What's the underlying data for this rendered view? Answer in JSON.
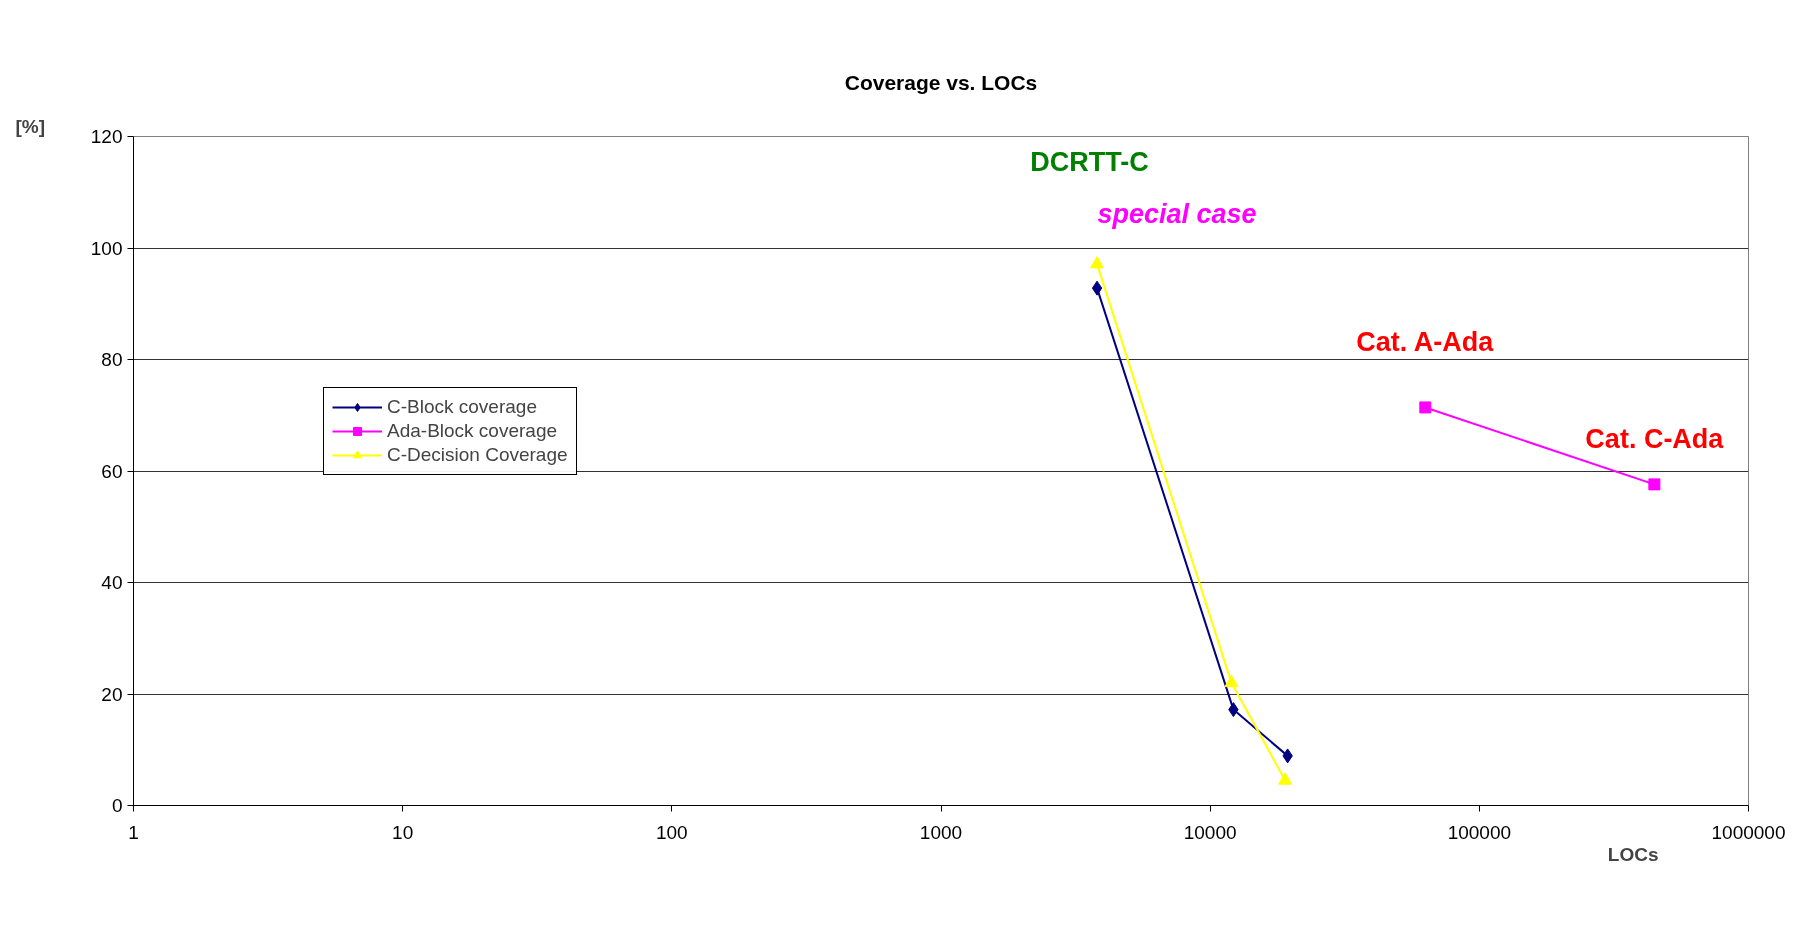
{
  "chart_data": {
    "type": "line",
    "title": "Coverage vs. LOCs",
    "xlabel": "LOCs",
    "ylabel": "[%]",
    "log": "x",
    "xlim": [
      1,
      1000000
    ],
    "xticks": [
      1,
      10,
      100,
      1000,
      10000,
      100000,
      1000000
    ],
    "ylim": [
      0,
      120
    ],
    "yticks": [
      0,
      20,
      40,
      60,
      80,
      100,
      120
    ],
    "grid": "y",
    "legend": "left",
    "series": [
      {
        "name": "C-Block coverage",
        "color": "#000080",
        "marker": "diamond",
        "x": [
          3800,
          12200,
          19400
        ],
        "values": [
          92.8,
          17.2,
          8.9
        ]
      },
      {
        "name": "Ada-Block coverage",
        "color": "#ff00ff",
        "marker": "square",
        "x": [
          63000,
          447000
        ],
        "values": [
          71.4,
          57.6
        ]
      },
      {
        "name": "C-Decision Coverage",
        "color": "#ffff00",
        "marker": "triangle",
        "x": [
          3800,
          12000,
          19000
        ],
        "values": [
          97.1,
          22,
          4.5
        ]
      }
    ],
    "annotations": [
      "DCRTT-C",
      {
        "text": "special case",
        "x": 3800,
        "y": 97.1
      },
      {
        "text": "Cat. A-Ada",
        "x": 63000,
        "y": 71.4
      },
      {
        "text": "Cat. C-Ada",
        "x": 447000,
        "y": 57.6
      }
    ]
  }
}
